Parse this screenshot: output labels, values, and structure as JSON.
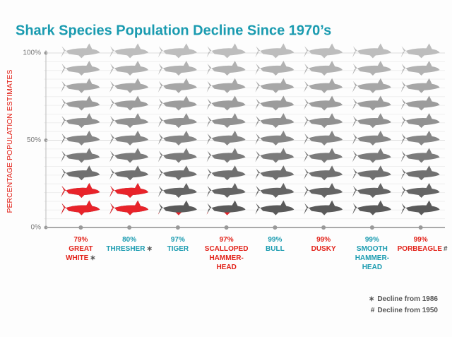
{
  "chart_data": {
    "type": "pictograph",
    "title": "Shark Species Population Decline Since 1970’s",
    "y_label": "PERCENTAGE POPULATION ESTIMATES",
    "categories": [
      "GREAT WHITE",
      "THRESHER",
      "TIGER",
      "SCALLOPED HAMMER-HEAD",
      "BULL",
      "DUSKY",
      "SMOOTH HAMMER-HEAD",
      "PORBEAGLE"
    ],
    "values": [
      79,
      80,
      97,
      97,
      99,
      99,
      99,
      99
    ],
    "value_labels": [
      "79%",
      "80%",
      "97%",
      "97%",
      "99%",
      "99%",
      "99%",
      "99%"
    ],
    "label_colors": [
      "#e2231a",
      "#1a9bb0",
      "#1a9bb0",
      "#e2231a",
      "#1a9bb0",
      "#e2231a",
      "#1a9bb0",
      "#e2231a"
    ],
    "category_notes": [
      "∗",
      "∗",
      null,
      null,
      null,
      null,
      null,
      "#"
    ],
    "remaining_color": "#e8232a",
    "ylim": [
      0,
      100
    ],
    "yticks": [
      {
        "value": 0,
        "label": "0%"
      },
      {
        "value": 50,
        "label": "50%"
      },
      {
        "value": 100,
        "label": "100%"
      }
    ],
    "grid": true,
    "notes": [
      {
        "symbol": "∗",
        "text": "Decline from 1986"
      },
      {
        "symbol": "#",
        "text": "Decline from 1950"
      }
    ]
  }
}
